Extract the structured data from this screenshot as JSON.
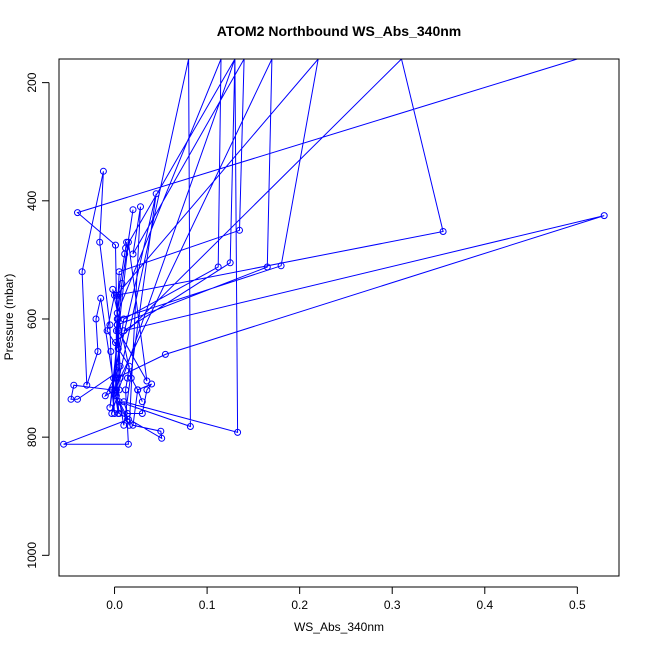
{
  "chart_data": {
    "type": "scatter",
    "title": "ATOM2 Northbound WS_Abs_340nm",
    "xlabel": "WS_Abs_340nm",
    "ylabel": "Pressure (mbar)",
    "xlim": [
      -0.06,
      0.545
    ],
    "ylim": [
      1035,
      160
    ],
    "y_reversed": true,
    "x_ticks": [
      0.0,
      0.1,
      0.2,
      0.3,
      0.4,
      0.5
    ],
    "x_tick_labels": [
      "0.0",
      "0.1",
      "0.2",
      "0.3",
      "0.4",
      "0.5"
    ],
    "y_ticks": [
      200,
      400,
      600,
      800,
      1000
    ],
    "y_tick_labels": [
      "200",
      "400",
      "600",
      "800",
      "1000"
    ],
    "grid": false,
    "legend": "none",
    "series": [
      {
        "color": "#0000ff",
        "marker": "open-circle",
        "line": true,
        "x": [
          0.5,
          -0.04,
          0.001,
          0.002,
          0.003,
          0.004,
          0.005,
          -0.003,
          0.003,
          0.001,
          0.31,
          0.355,
          0.002,
          0.22,
          0.18,
          0.004,
          0.006,
          0.17,
          0.165,
          0.003,
          0.001,
          0.01,
          0.045,
          -0.001,
          0.008,
          0.02,
          0.003,
          0.115,
          0.112,
          0.01,
          -0.005,
          0.015,
          0.035,
          0.004,
          -0.002,
          0.016,
          0.028,
          0.02,
          0.14,
          0.135,
          0.005,
          0.002,
          0.001,
          -0.01,
          0.006,
          0.003,
          0.004,
          0.011,
          0.013,
          0.012,
          0.13,
          0.125,
          0.01,
          0.529,
          0.055,
          0.002,
          0.004,
          -0.015,
          -0.02,
          -0.018,
          -0.03,
          -0.035,
          -0.012,
          -0.016,
          -0.005,
          -0.004,
          0.0,
          -0.003,
          -0.044,
          -0.047,
          -0.04,
          0.003,
          0.002,
          0.13,
          0.133,
          0.01,
          0.014,
          0.03,
          0.035,
          0.04,
          0.025,
          0.02,
          0.05,
          0.051,
          0.005,
          0.002,
          0.08,
          0.082,
          0.005,
          0.015,
          -0.055,
          0.015,
          0.012,
          0.014,
          0.016,
          -0.008,
          0.0,
          -0.002,
          0.018,
          0.025,
          0.03
        ],
        "y": [
          160,
          420,
          475,
          560,
          610,
          650,
          720,
          760,
          700,
          640,
          160,
          452,
          560,
          160,
          510,
          600,
          700,
          160,
          512,
          610,
          700,
          780,
          388,
          700,
          540,
          415,
          590,
          160,
          512,
          600,
          750,
          470,
          705,
          620,
          720,
          780,
          410,
          490,
          160,
          450,
          520,
          620,
          720,
          730,
          680,
          600,
          560,
          490,
          470,
          480,
          160,
          505,
          620,
          425,
          660,
          700,
          760,
          565,
          600,
          655,
          712,
          520,
          350,
          470,
          610,
          655,
          760,
          720,
          712,
          736,
          736,
          690,
          730,
          160,
          792,
          740,
          760,
          760,
          720,
          710,
          720,
          780,
          790,
          802,
          760,
          720,
          160,
          782,
          740,
          770,
          812,
          812,
          720,
          700,
          680,
          620,
          560,
          550,
          700,
          720,
          740
        ]
      }
    ]
  }
}
